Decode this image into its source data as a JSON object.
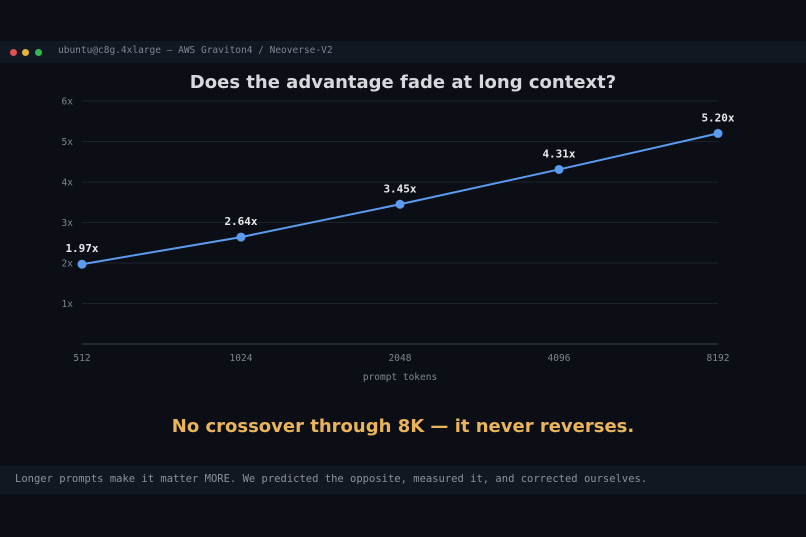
{
  "window": {
    "title": "ubuntu@c8g.4xlarge  —  AWS Graviton4 / Neoverse-V2",
    "controls": [
      {
        "name": "close",
        "color": "#e0524f"
      },
      {
        "name": "minimize",
        "color": "#e2b53c"
      },
      {
        "name": "maximize",
        "color": "#2fbd4f"
      }
    ]
  },
  "headline": "Does the advantage fade at long context?",
  "callout": {
    "text": "No crossover through 8K — it never reverses.",
    "color": "#e9b45a"
  },
  "footer": {
    "note": "Longer prompts make it matter MORE. We predicted the opposite, measured it, and corrected ourselves."
  },
  "colors": {
    "series": "#5b9cf0",
    "label": "#e6e8eb",
    "grid": "#1c232c",
    "axis": "#3a424d",
    "tick": "#7d8693"
  },
  "chart_data": {
    "type": "line",
    "title": "",
    "xlabel": "prompt tokens",
    "ylabel": "",
    "x": [
      "512",
      "1024",
      "2048",
      "4096",
      "8192"
    ],
    "series": [
      {
        "values": [
          1.97,
          2.64,
          3.45,
          4.31,
          5.2
        ],
        "labels": [
          "1.97x",
          "2.64x",
          "3.45x",
          "4.31x",
          "5.20x"
        ]
      }
    ],
    "ylim": [
      0,
      6
    ],
    "yticks": [
      1,
      2,
      3,
      4,
      5,
      6
    ],
    "ytick_labels": [
      "1x",
      "2x",
      "3x",
      "4x",
      "5x",
      "6x"
    ],
    "grid": true
  }
}
